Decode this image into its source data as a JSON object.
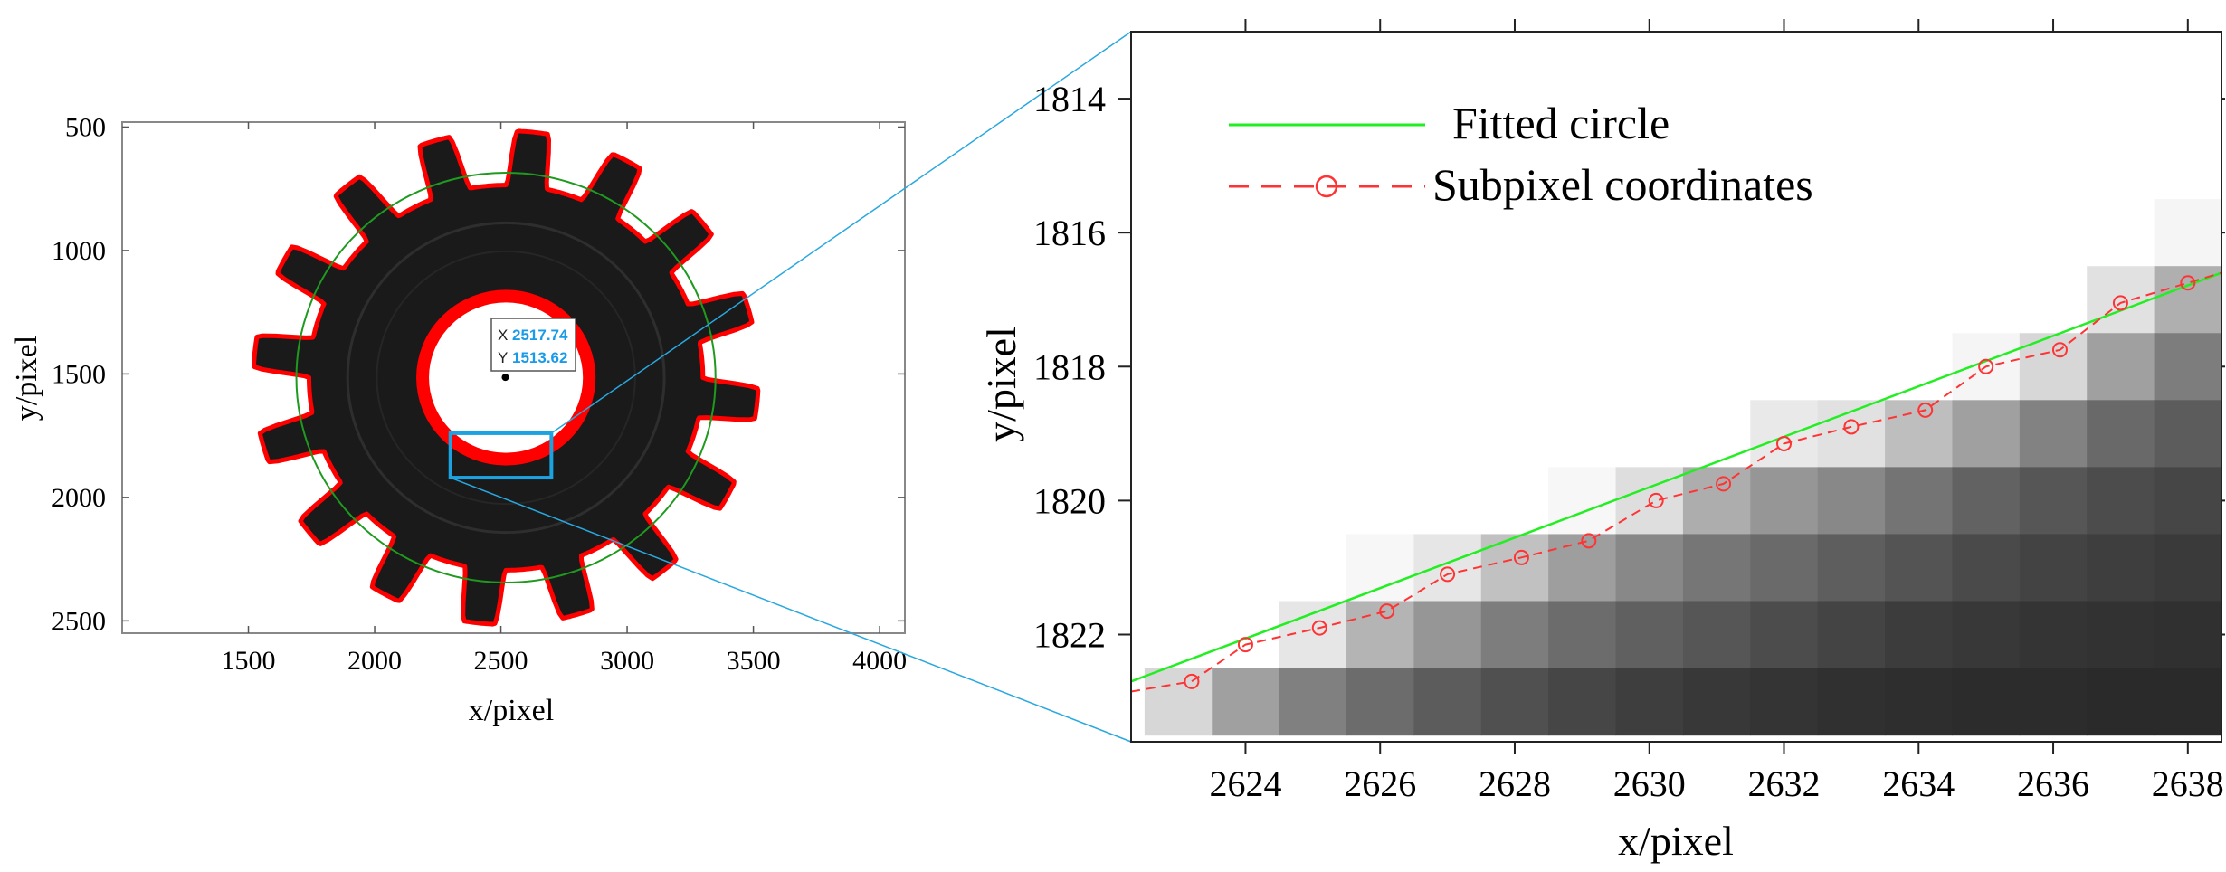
{
  "chart_data": [
    {
      "id": "overview",
      "type": "image",
      "xlabel": "x/pixel",
      "ylabel": "y/pixel",
      "xlim": [
        1000,
        4100
      ],
      "ylim": [
        2550,
        480
      ],
      "y_inverted": true,
      "xticks": [
        1500,
        2000,
        2500,
        3000,
        3500,
        4000
      ],
      "yticks": [
        500,
        1000,
        1500,
        2000,
        2500
      ],
      "gear": {
        "center": [
          2520,
          1515
        ],
        "teeth": 16,
        "outer_radius": 1000,
        "root_radius": 780,
        "bore_radius": 330,
        "fitted_circle_radius": 830
      },
      "datatip": {
        "x_label": "X",
        "x_value": "2517.74",
        "y_label": "Y",
        "y_value": "1513.62",
        "point": [
          2517.74,
          1513.62
        ]
      },
      "roi": {
        "x0": 2300,
        "x1": 2700,
        "y0": 1740,
        "y1": 1920
      },
      "colors": {
        "gear": "#1a1a1a",
        "contour": "#ff0000",
        "fitted": "#1f9a1f",
        "roi": "#1aa3e0"
      }
    },
    {
      "id": "zoom",
      "type": "line",
      "xlabel": "x/pixel",
      "ylabel": "y/pixel",
      "xlim": [
        2622.3,
        2638.5
      ],
      "ylim": [
        1813,
        1823.6
      ],
      "y_inverted": true,
      "xticks": [
        2624,
        2626,
        2628,
        2630,
        2632,
        2634,
        2636,
        2638
      ],
      "yticks": [
        1814,
        1816,
        1818,
        1820,
        1822
      ],
      "legend_position": "top-left",
      "series": [
        {
          "name": "Fitted circle",
          "style": "solid",
          "color": "#22ee22",
          "x": [
            2622.3,
            2638.5
          ],
          "y": [
            1822.7,
            1816.6
          ]
        },
        {
          "name": "Subpixel coordinates",
          "style": "dashed-circle",
          "color": "#ff3333",
          "x": [
            2622.3,
            2623.2,
            2624.0,
            2625.1,
            2626.1,
            2627.0,
            2628.1,
            2629.1,
            2630.1,
            2631.1,
            2632.0,
            2633.0,
            2634.1,
            2635.0,
            2636.1,
            2637.0,
            2638.0,
            2638.5
          ],
          "y": [
            1822.85,
            1822.7,
            1822.15,
            1821.9,
            1821.65,
            1821.1,
            1820.85,
            1820.6,
            1820.0,
            1819.75,
            1819.15,
            1818.9,
            1818.65,
            1818.0,
            1817.75,
            1817.05,
            1816.75,
            1816.6
          ]
        }
      ],
      "pixel_grid": {
        "x_start": 2622.5,
        "y_start": 1815.5,
        "cols": 16,
        "rows": 8,
        "gray": [
          [
            255,
            255,
            255,
            255,
            255,
            255,
            255,
            255,
            255,
            255,
            255,
            255,
            255,
            255,
            255,
            245
          ],
          [
            255,
            255,
            255,
            255,
            255,
            255,
            255,
            255,
            255,
            255,
            255,
            255,
            255,
            255,
            225,
            175
          ],
          [
            255,
            255,
            255,
            255,
            255,
            255,
            255,
            255,
            255,
            255,
            255,
            255,
            245,
            215,
            160,
            125
          ],
          [
            255,
            255,
            255,
            255,
            255,
            255,
            255,
            255,
            255,
            233,
            225,
            190,
            160,
            130,
            105,
            92
          ],
          [
            255,
            255,
            255,
            255,
            255,
            255,
            247,
            222,
            173,
            150,
            136,
            116,
            98,
            86,
            76,
            70
          ],
          [
            255,
            255,
            255,
            247,
            230,
            193,
            158,
            136,
            118,
            106,
            94,
            84,
            74,
            67,
            62,
            58
          ],
          [
            255,
            255,
            230,
            180,
            150,
            125,
            108,
            96,
            86,
            76,
            68,
            60,
            56,
            52,
            50,
            48
          ],
          [
            215,
            160,
            128,
            108,
            92,
            80,
            70,
            62,
            56,
            52,
            48,
            46,
            44,
            44,
            42,
            42
          ]
        ]
      }
    }
  ]
}
